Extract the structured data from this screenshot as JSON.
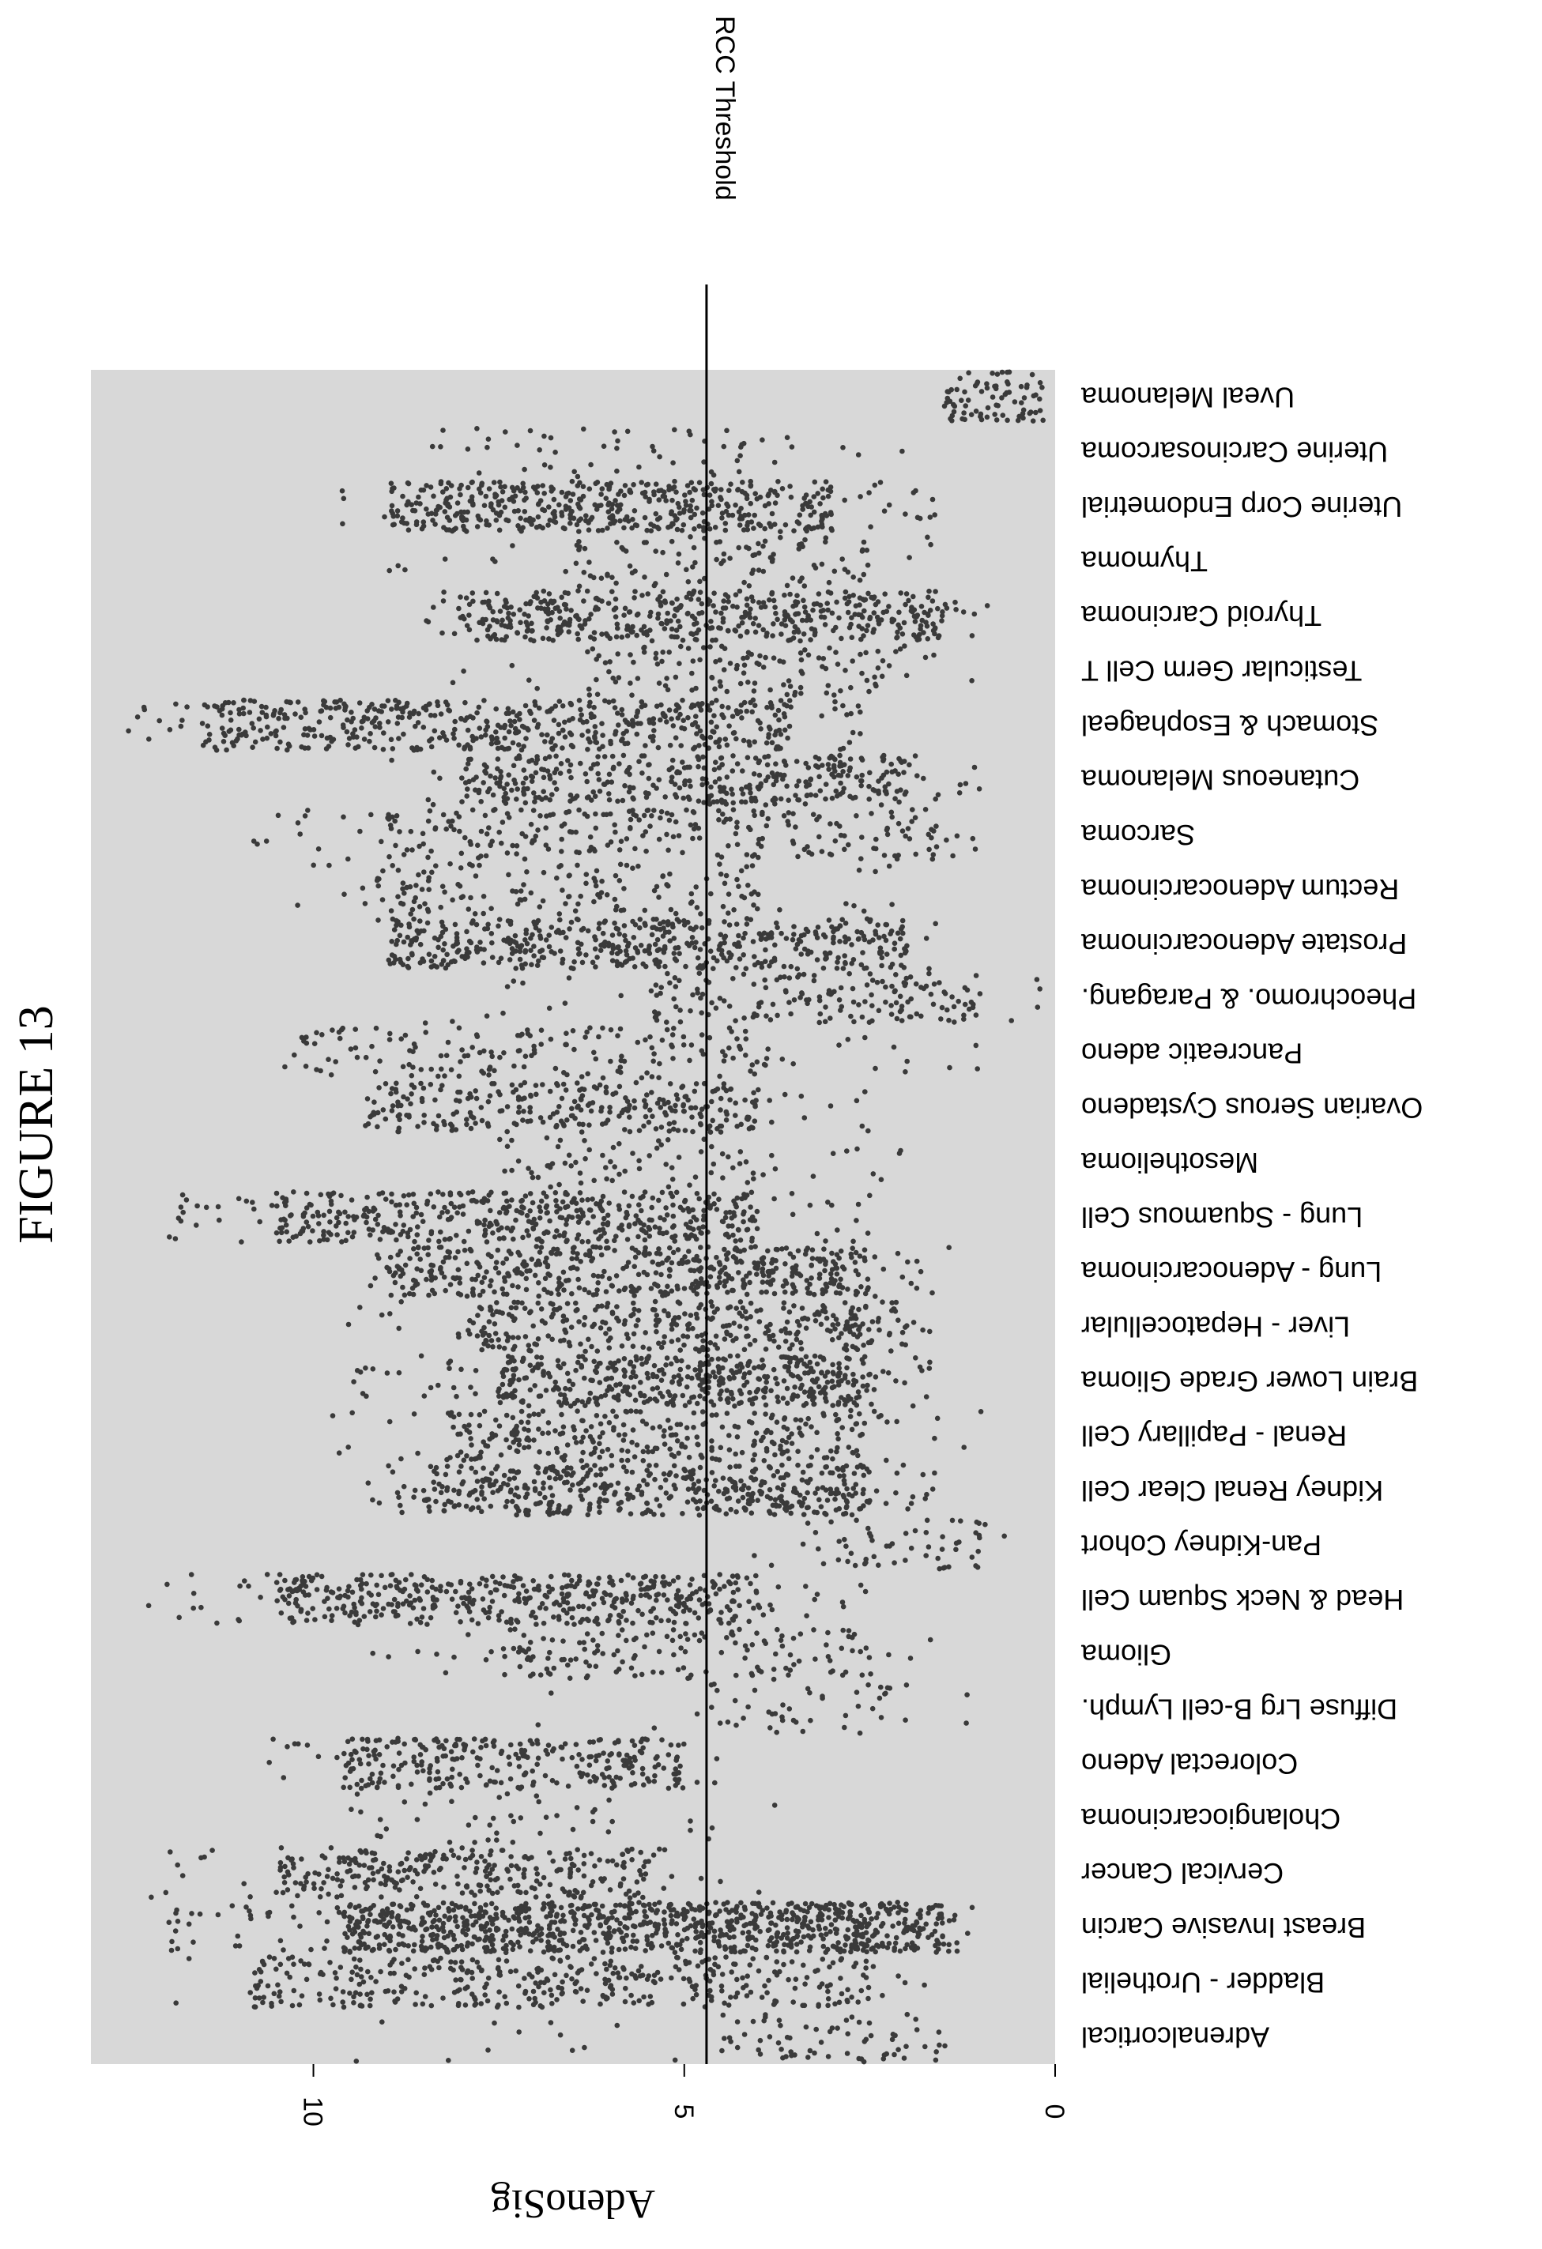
{
  "figure_label": "FIGURE 13",
  "chart_data": {
    "type": "scatter",
    "title": "",
    "xlabel": "",
    "ylabel": "AdenoSig",
    "ylim": [
      0,
      13
    ],
    "yticks": [
      0,
      5,
      10
    ],
    "grid": false,
    "legend": "none",
    "background_color": "#d8d8d8",
    "point_color": "#3a3a3a",
    "threshold": {
      "label": "RCC Threshold",
      "value": 4.7
    },
    "categories": [
      "Adrenalcortical",
      "Bladder - Urothelial",
      "Breast Invasive Carcin",
      "Cervical Cancer",
      "Cholangiocarcinoma",
      "Colorectal Adeno",
      "Diffuse Lrg B-cell Lymph.",
      "Glioma",
      "Head & Neck Squam Cell",
      "Pan-Kidney Cohort",
      "Kidney Renal Clear Cell",
      "Renal - Papillary Cell",
      "Brain Lower Grade Glioma",
      "Liver - Hepatocellular",
      "Lung - Adenocarcinoma",
      "Lung - Squamous Cell",
      "Mesothelioma",
      "Ovarian Serous Cystadeno",
      "Pancreatic adeno",
      "Pheochromo. & Paragang.",
      "Prostate Adenocarcinoma",
      "Rectum Adenocarcinoma",
      "Sarcoma",
      "Cutaneous Melanoma",
      "Stomach & Esophageal",
      "Testicular Germ Cell T",
      "Thyroid Carcinoma",
      "Thymoma",
      "Uterine Corp Endometrial",
      "Uterine Carcinosarcoma",
      "Uveal Melanoma"
    ],
    "distributions": [
      {
        "category": "Adrenalcortical",
        "min": 0.6,
        "max": 9.7,
        "dense_low": 1.5,
        "dense_high": 4.5,
        "n": 80
      },
      {
        "category": "Bladder - Urothelial",
        "min": 1.5,
        "max": 12.0,
        "dense_low": 2.5,
        "dense_high": 10.8,
        "n": 400
      },
      {
        "category": "Breast Invasive Carcin",
        "min": 1.0,
        "max": 12.0,
        "dense_low": 1.5,
        "dense_high": 9.6,
        "n": 1000
      },
      {
        "category": "Cervical Cancer",
        "min": 3.5,
        "max": 12.2,
        "dense_low": 5.5,
        "dense_high": 10.5,
        "n": 300
      },
      {
        "category": "Cholangiocarcinoma",
        "min": 3.0,
        "max": 10.0,
        "dense_low": 5.5,
        "dense_high": 9.5,
        "n": 45
      },
      {
        "category": "Colorectal Adeno",
        "min": 4.3,
        "max": 10.6,
        "dense_low": 5.0,
        "dense_high": 9.6,
        "n": 300
      },
      {
        "category": "Diffuse Lrg B-cell Lymph.",
        "min": 1.0,
        "max": 7.0,
        "dense_low": 2.0,
        "dense_high": 5.0,
        "n": 50
      },
      {
        "category": "Glioma",
        "min": 1.3,
        "max": 9.5,
        "dense_low": 2.5,
        "dense_high": 7.5,
        "n": 160
      },
      {
        "category": "Head & Neck Squam Cell",
        "min": 2.5,
        "max": 12.3,
        "dense_low": 4.0,
        "dense_high": 10.5,
        "n": 500
      },
      {
        "category": "Pan-Kidney Cohort",
        "min": 0.6,
        "max": 4.3,
        "dense_low": 1.0,
        "dense_high": 3.5,
        "n": 60
      },
      {
        "category": "Kidney Renal Clear Cell",
        "min": 1.5,
        "max": 9.5,
        "dense_low": 2.5,
        "dense_high": 8.5,
        "n": 500
      },
      {
        "category": "Renal - Papillary Cell",
        "min": 1.0,
        "max": 9.8,
        "dense_low": 2.5,
        "dense_high": 8.2,
        "n": 300
      },
      {
        "category": "Brain Lower Grade Glioma",
        "min": 1.5,
        "max": 9.5,
        "dense_low": 2.5,
        "dense_high": 7.5,
        "n": 500
      },
      {
        "category": "Liver - Hepatocellular",
        "min": 1.5,
        "max": 9.6,
        "dense_low": 2.0,
        "dense_high": 7.8,
        "n": 350
      },
      {
        "category": "Lung - Adenocarcinoma",
        "min": 1.3,
        "max": 9.3,
        "dense_low": 2.5,
        "dense_high": 9.0,
        "n": 500
      },
      {
        "category": "Lung - Squamous Cell",
        "min": 2.5,
        "max": 12.0,
        "dense_low": 4.0,
        "dense_high": 10.5,
        "n": 500
      },
      {
        "category": "Mesothelioma",
        "min": 2.0,
        "max": 8.0,
        "dense_low": 4.0,
        "dense_high": 7.5,
        "n": 80
      },
      {
        "category": "Ovarian Serous Cystadeno",
        "min": 2.5,
        "max": 9.6,
        "dense_low": 4.0,
        "dense_high": 9.3,
        "n": 300
      },
      {
        "category": "Pancreatic adeno",
        "min": 1.0,
        "max": 10.7,
        "dense_low": 4.0,
        "dense_high": 10.3,
        "n": 180
      },
      {
        "category": "Pheochromo. & Paragang.",
        "min": 0.2,
        "max": 8.5,
        "dense_low": 1.0,
        "dense_high": 5.5,
        "n": 180
      },
      {
        "category": "Prostate Adenocarcinoma",
        "min": 1.5,
        "max": 9.6,
        "dense_low": 2.0,
        "dense_high": 9.0,
        "n": 500
      },
      {
        "category": "Rectum Adenocarcinoma",
        "min": 2.0,
        "max": 10.3,
        "dense_low": 4.0,
        "dense_high": 9.5,
        "n": 160
      },
      {
        "category": "Sarcoma",
        "min": 0.9,
        "max": 11.1,
        "dense_low": 1.5,
        "dense_high": 9.0,
        "n": 260
      },
      {
        "category": "Cutaneous Melanoma",
        "min": 1.0,
        "max": 9.0,
        "dense_low": 2.0,
        "dense_high": 8.0,
        "n": 400
      },
      {
        "category": "Stomach & Esophageal",
        "min": 2.5,
        "max": 12.7,
        "dense_low": 3.5,
        "dense_high": 11.5,
        "n": 550
      },
      {
        "category": "Testicular Germ Cell T",
        "min": 1.0,
        "max": 8.2,
        "dense_low": 2.0,
        "dense_high": 6.5,
        "n": 130
      },
      {
        "category": "Thyroid Carcinoma",
        "min": 0.9,
        "max": 8.5,
        "dense_low": 1.5,
        "dense_high": 8.0,
        "n": 500
      },
      {
        "category": "Thymoma",
        "min": 1.5,
        "max": 9.0,
        "dense_low": 2.5,
        "dense_high": 6.5,
        "n": 110
      },
      {
        "category": "Uterine Corp Endometrial",
        "min": 1.5,
        "max": 9.8,
        "dense_low": 3.0,
        "dense_high": 9.0,
        "n": 500
      },
      {
        "category": "Uterine Carcinosarcoma",
        "min": 2.0,
        "max": 9.6,
        "dense_low": 3.5,
        "dense_high": 8.5,
        "n": 55
      },
      {
        "category": "Uveal Melanoma",
        "min": 0.1,
        "max": 1.8,
        "dense_low": 0.2,
        "dense_high": 1.5,
        "n": 80
      }
    ]
  }
}
